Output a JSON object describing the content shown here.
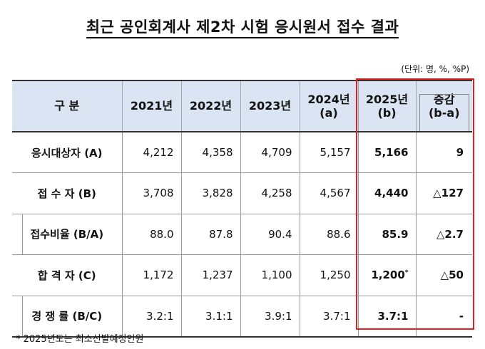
{
  "title": "최근 공인회계사 제2차 시험 응시원서 접수 결과",
  "unit": "(단위: 명, %, %P)",
  "header": {
    "col0": "구    분",
    "col1": "2021년",
    "col2": "2022년",
    "col3": "2023년",
    "col4_line1": "2024년",
    "col4_line2": "(a)",
    "col5_line1": "2025년",
    "col5_line2": "(b)",
    "col6_line1": "증감",
    "col6_line2": "(b-a)"
  },
  "rows": [
    {
      "label": "응시대상자 (A)",
      "v2021": "4,212",
      "v2022": "4,358",
      "v2023": "4,709",
      "v2024": "5,157",
      "v2025": "5,166",
      "v2025_mark": "",
      "diff": "9"
    },
    {
      "label": "접  수  자 (B)",
      "v2021": "3,708",
      "v2022": "3,828",
      "v2023": "4,258",
      "v2024": "4,567",
      "v2025": "4,440",
      "v2025_mark": "",
      "diff": "△127"
    },
    {
      "label": "접수비율 (B/A)",
      "v2021": "88.0",
      "v2022": "87.8",
      "v2023": "90.4",
      "v2024": "88.6",
      "v2025": "85.9",
      "v2025_mark": "",
      "diff": "△2.7"
    },
    {
      "label": "합  격  자 (C)",
      "v2021": "1,172",
      "v2022": "1,237",
      "v2023": "1,100",
      "v2024": "1,250",
      "v2025": "1,200",
      "v2025_mark": "*",
      "diff": "△50"
    },
    {
      "label": "경  쟁  률 (B/C)",
      "v2021": "3.2:1",
      "v2022": "3.1:1",
      "v2023": "3.9:1",
      "v2024": "3.7:1",
      "v2025": "3.7:1",
      "v2025_mark": "",
      "diff": "-"
    }
  ],
  "footnote": "* 2025년도는 최소선발예정인원",
  "colors": {
    "header_bg": "#dbe4f3",
    "highlight_border": "#e02020"
  }
}
